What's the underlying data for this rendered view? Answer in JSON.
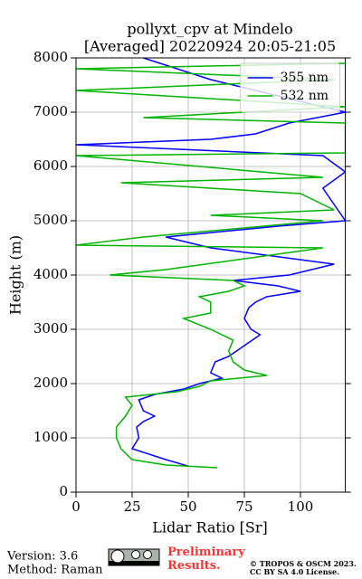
{
  "chart_data": {
    "type": "line",
    "title": "pollyxt_cpv at Mindelo",
    "subtitle": "[Averaged] 20220924 20:05-21:05",
    "xlabel": "Lidar Ratio [Sr]",
    "ylabel": "Height (m)",
    "xlim": [
      0,
      120
    ],
    "ylim": [
      0,
      8000
    ],
    "xticks": [
      0,
      25,
      50,
      75,
      100
    ],
    "yticks": [
      0,
      1000,
      2000,
      3000,
      4000,
      5000,
      6000,
      7000,
      8000
    ],
    "grid": true,
    "legend": "upper right",
    "series": [
      {
        "name": "355 nm",
        "color": "#0000ff",
        "x": [
          50,
          40,
          25,
          28,
          27,
          30,
          35,
          30,
          28,
          35,
          48,
          55,
          65,
          60,
          62,
          68,
          75,
          82,
          78,
          75,
          77,
          80,
          85,
          100,
          90,
          70,
          95,
          105,
          115,
          60,
          40,
          90,
          120,
          115,
          110,
          120,
          110,
          0,
          60,
          80,
          95,
          120,
          90,
          60,
          30
        ],
        "y": [
          480,
          600,
          800,
          1000,
          1200,
          1300,
          1400,
          1500,
          1700,
          1800,
          1900,
          2000,
          2100,
          2200,
          2400,
          2500,
          2700,
          2900,
          3000,
          3200,
          3400,
          3500,
          3600,
          3700,
          3800,
          3900,
          4000,
          4100,
          4200,
          4500,
          4700,
          4900,
          5000,
          5300,
          5600,
          5900,
          6200,
          6400,
          6500,
          6600,
          6800,
          7000,
          7300,
          7600,
          8000
        ]
      },
      {
        "name": "532 nm",
        "color": "#00b400",
        "x": [
          63,
          40,
          25,
          20,
          18,
          18,
          22,
          25,
          22,
          45,
          55,
          60,
          85,
          75,
          70,
          68,
          70,
          60,
          48,
          60,
          60,
          55,
          68,
          75,
          70,
          15,
          40,
          110,
          0,
          30,
          110,
          60,
          115,
          100,
          20,
          110,
          0,
          120,
          120,
          30,
          120,
          0,
          115,
          0,
          120
        ],
        "y": [
          450,
          500,
          600,
          800,
          1000,
          1200,
          1400,
          1600,
          1750,
          1850,
          1950,
          2050,
          2150,
          2250,
          2400,
          2600,
          2800,
          3000,
          3200,
          3300,
          3500,
          3600,
          3700,
          3800,
          3900,
          4000,
          4100,
          4500,
          4550,
          4700,
          5000,
          5100,
          5200,
          5500,
          5700,
          5800,
          6200,
          6250,
          6800,
          6900,
          7100,
          7400,
          7600,
          7800,
          7900
        ]
      }
    ]
  },
  "footer": {
    "version": "Version: 3.6",
    "method": "Method: Raman",
    "notice": "Preliminary Results.",
    "copyright": "© TROPOS & OSCM 2023.",
    "license": "CC BY SA 4.0 License."
  }
}
